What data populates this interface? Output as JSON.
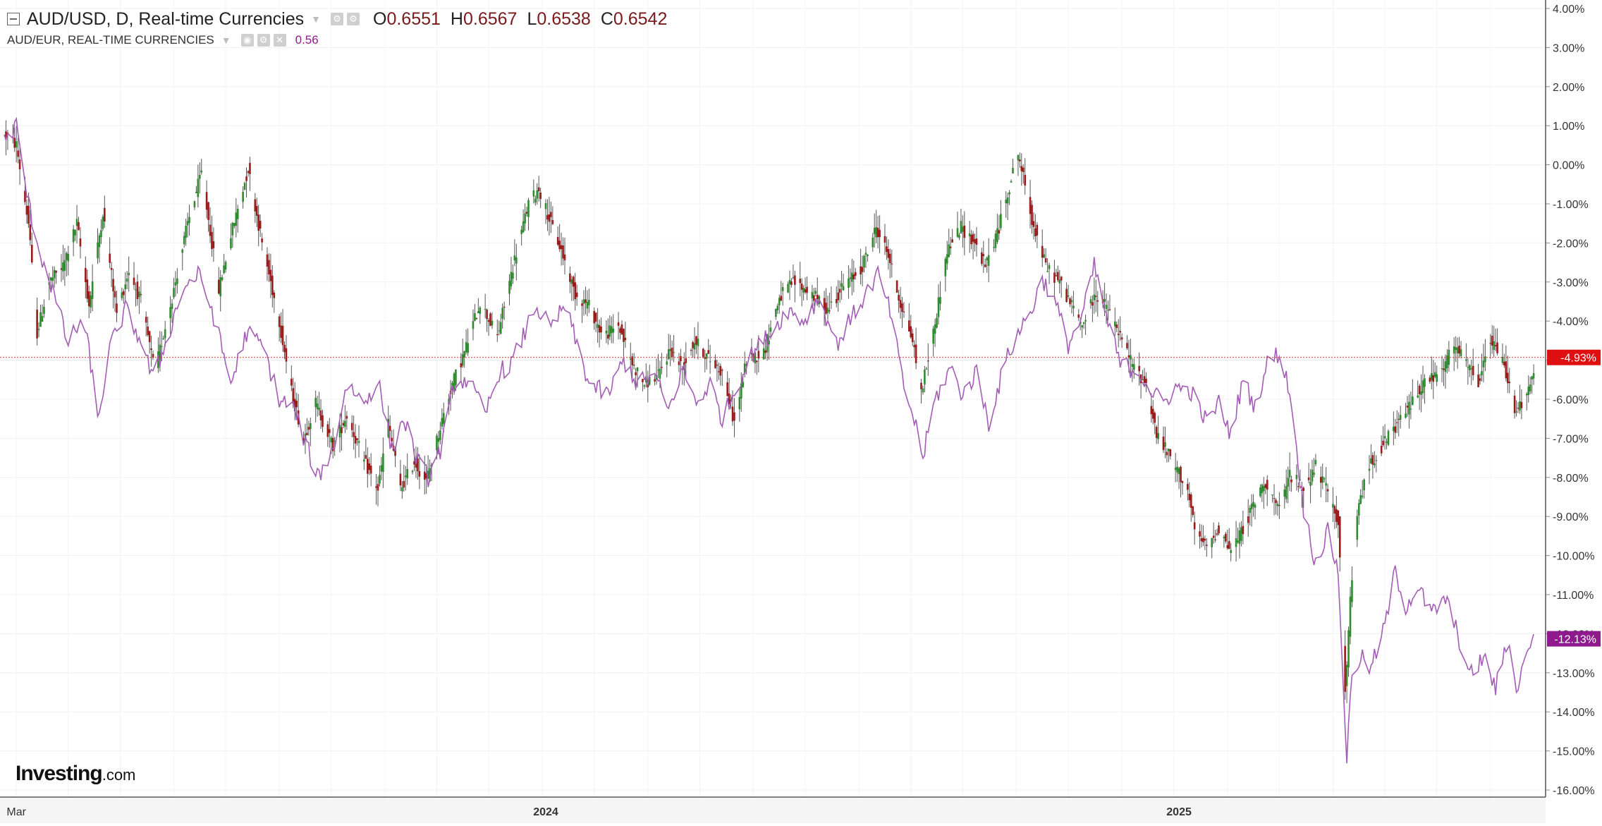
{
  "legend": {
    "main_title": "AUD/USD, D, Real-time Currencies",
    "ohlc": {
      "o_key": "O",
      "o_val": "0.6551",
      "h_key": "H",
      "h_val": "0.6567",
      "l_key": "L",
      "l_val": "0.6538",
      "c_key": "C",
      "c_val": "0.6542"
    },
    "compare_title": "AUD/EUR, REAL-TIME CURRENCIES",
    "compare_value": "0.56",
    "compare_color": "#8e1a8e"
  },
  "logo": {
    "text": "Investing",
    "suffix": ".com"
  },
  "chart_data": {
    "type": "line",
    "title": "AUD/USD, D, Real-time Currencies",
    "y_unit": "%",
    "ylim": [
      -16.4,
      4.2
    ],
    "y_ticks": [
      "4.00%",
      "3.00%",
      "2.00%",
      "1.00%",
      "0.00%",
      "-1.00%",
      "-2.00%",
      "-3.00%",
      "-4.00%",
      "-5.00%",
      "-6.00%",
      "-7.00%",
      "-8.00%",
      "-9.00%",
      "-10.00%",
      "-11.00%",
      "-12.00%",
      "-13.00%",
      "-14.00%",
      "-15.00%",
      "-16.00%"
    ],
    "x_range": [
      "2023-02-22",
      "2025-07-27"
    ],
    "x_ticks": [
      {
        "label": "Mar",
        "date": "2023-03-01"
      },
      {
        "label": "2024",
        "date": "2024-01-01"
      },
      {
        "label": "2025",
        "date": "2025-01-01"
      }
    ],
    "grid": true,
    "up_color": "#2e8b2e",
    "down_color": "#9b1b1b",
    "baseline_value": -4.93,
    "series": [
      {
        "name": "AUD/USD",
        "last_label": "-4.93%",
        "label_color": "#e01010",
        "points": [
          [
            "2023-02-22",
            0.8
          ],
          [
            "2023-03-01",
            0.5
          ],
          [
            "2023-03-08",
            -1.5
          ],
          [
            "2023-03-13",
            -4.3
          ],
          [
            "2023-03-20",
            -3.0
          ],
          [
            "2023-03-28",
            -2.6
          ],
          [
            "2023-04-05",
            -1.5
          ],
          [
            "2023-04-12",
            -3.6
          ],
          [
            "2023-04-20",
            -1.2
          ],
          [
            "2023-04-28",
            -3.8
          ],
          [
            "2023-05-05",
            -2.7
          ],
          [
            "2023-05-12",
            -3.5
          ],
          [
            "2023-05-20",
            -5.3
          ],
          [
            "2023-05-31",
            -3.2
          ],
          [
            "2023-06-08",
            -1.5
          ],
          [
            "2023-06-16",
            -0.2
          ],
          [
            "2023-06-26",
            -3.2
          ],
          [
            "2023-07-03",
            -1.8
          ],
          [
            "2023-07-13",
            -0.1
          ],
          [
            "2023-07-21",
            -2.0
          ],
          [
            "2023-07-31",
            -4.0
          ],
          [
            "2023-08-07",
            -5.8
          ],
          [
            "2023-08-14",
            -7.0
          ],
          [
            "2023-08-21",
            -6.1
          ],
          [
            "2023-08-31",
            -7.2
          ],
          [
            "2023-09-08",
            -6.4
          ],
          [
            "2023-09-18",
            -7.6
          ],
          [
            "2023-09-26",
            -8.3
          ],
          [
            "2023-10-02",
            -6.6
          ],
          [
            "2023-10-09",
            -8.3
          ],
          [
            "2023-10-17",
            -7.6
          ],
          [
            "2023-10-24",
            -8.1
          ],
          [
            "2023-11-01",
            -6.7
          ],
          [
            "2023-11-08",
            -5.6
          ],
          [
            "2023-11-15",
            -4.8
          ],
          [
            "2023-11-24",
            -3.5
          ],
          [
            "2023-12-04",
            -4.4
          ],
          [
            "2023-12-13",
            -2.6
          ],
          [
            "2023-12-22",
            -1.0
          ],
          [
            "2023-12-28",
            -0.6
          ],
          [
            "2024-01-04",
            -1.5
          ],
          [
            "2024-01-10",
            -2.2
          ],
          [
            "2024-01-18",
            -3.3
          ],
          [
            "2024-01-26",
            -3.6
          ],
          [
            "2024-02-03",
            -4.4
          ],
          [
            "2024-02-12",
            -4.1
          ],
          [
            "2024-02-20",
            -5.1
          ],
          [
            "2024-02-27",
            -5.6
          ],
          [
            "2024-03-06",
            -5.4
          ],
          [
            "2024-03-13",
            -4.7
          ],
          [
            "2024-03-20",
            -5.2
          ],
          [
            "2024-03-27",
            -4.5
          ],
          [
            "2024-04-05",
            -5.0
          ],
          [
            "2024-04-12",
            -5.3
          ],
          [
            "2024-04-19",
            -6.6
          ],
          [
            "2024-04-26",
            -5.0
          ],
          [
            "2024-05-06",
            -4.8
          ],
          [
            "2024-05-15",
            -3.4
          ],
          [
            "2024-05-23",
            -3.0
          ],
          [
            "2024-06-03",
            -3.3
          ],
          [
            "2024-06-12",
            -3.7
          ],
          [
            "2024-06-21",
            -3.1
          ],
          [
            "2024-07-01",
            -2.7
          ],
          [
            "2024-07-10",
            -1.6
          ],
          [
            "2024-07-17",
            -2.3
          ],
          [
            "2024-07-23",
            -3.4
          ],
          [
            "2024-07-31",
            -4.5
          ],
          [
            "2024-08-05",
            -5.8
          ],
          [
            "2024-08-12",
            -4.3
          ],
          [
            "2024-08-20",
            -2.2
          ],
          [
            "2024-08-28",
            -1.6
          ],
          [
            "2024-09-05",
            -2.0
          ],
          [
            "2024-09-11",
            -2.6
          ],
          [
            "2024-09-19",
            -1.6
          ],
          [
            "2024-09-24",
            -0.7
          ],
          [
            "2024-09-30",
            0.3
          ],
          [
            "2024-10-08",
            -1.4
          ],
          [
            "2024-10-16",
            -2.6
          ],
          [
            "2024-10-24",
            -3.0
          ],
          [
            "2024-10-31",
            -3.6
          ],
          [
            "2024-11-06",
            -4.1
          ],
          [
            "2024-11-14",
            -3.3
          ],
          [
            "2024-11-21",
            -3.7
          ],
          [
            "2024-11-28",
            -4.4
          ],
          [
            "2024-12-06",
            -5.2
          ],
          [
            "2024-12-13",
            -5.6
          ],
          [
            "2024-12-19",
            -6.9
          ],
          [
            "2024-12-27",
            -7.5
          ],
          [
            "2025-01-06",
            -8.3
          ],
          [
            "2025-01-10",
            -9.4
          ],
          [
            "2025-01-17",
            -9.8
          ],
          [
            "2025-01-24",
            -9.3
          ],
          [
            "2025-01-31",
            -9.9
          ],
          [
            "2025-02-06",
            -9.4
          ],
          [
            "2025-02-13",
            -8.7
          ],
          [
            "2025-02-20",
            -8.1
          ],
          [
            "2025-02-28",
            -8.9
          ],
          [
            "2025-03-06",
            -7.9
          ],
          [
            "2025-03-14",
            -8.3
          ],
          [
            "2025-03-21",
            -7.7
          ],
          [
            "2025-03-28",
            -8.4
          ],
          [
            "2025-04-03",
            -9.1
          ],
          [
            "2025-04-07",
            -13.5
          ],
          [
            "2025-04-10",
            -11.2
          ],
          [
            "2025-04-15",
            -8.6
          ],
          [
            "2025-04-22",
            -7.6
          ],
          [
            "2025-04-30",
            -7.1
          ],
          [
            "2025-05-08",
            -6.6
          ],
          [
            "2025-05-15",
            -6.1
          ],
          [
            "2025-05-22",
            -5.6
          ],
          [
            "2025-06-02",
            -5.3
          ],
          [
            "2025-06-09",
            -4.6
          ],
          [
            "2025-06-16",
            -5.1
          ],
          [
            "2025-06-23",
            -5.6
          ],
          [
            "2025-06-30",
            -4.5
          ],
          [
            "2025-07-07",
            -5.0
          ],
          [
            "2025-07-14",
            -6.2
          ],
          [
            "2025-07-21",
            -6.0
          ],
          [
            "2025-07-27",
            -4.93
          ]
        ]
      },
      {
        "name": "AUD/EUR",
        "last_label": "-12.13%",
        "label_color": "#8e1a8e",
        "line_color": "#a35db5",
        "points": [
          [
            "2023-02-22",
            0.6
          ],
          [
            "2023-03-01",
            1.0
          ],
          [
            "2023-03-08",
            -1.0
          ],
          [
            "2023-03-15",
            -2.3
          ],
          [
            "2023-03-22",
            -3.2
          ],
          [
            "2023-03-31",
            -4.6
          ],
          [
            "2023-04-07",
            -4.0
          ],
          [
            "2023-04-12",
            -4.7
          ],
          [
            "2023-04-17",
            -6.6
          ],
          [
            "2023-04-24",
            -4.7
          ],
          [
            "2023-05-03",
            -3.7
          ],
          [
            "2023-05-12",
            -4.5
          ],
          [
            "2023-05-19",
            -5.5
          ],
          [
            "2023-05-26",
            -4.6
          ],
          [
            "2023-06-05",
            -3.2
          ],
          [
            "2023-06-14",
            -2.8
          ],
          [
            "2023-06-22",
            -3.7
          ],
          [
            "2023-07-03",
            -5.6
          ],
          [
            "2023-07-12",
            -4.3
          ],
          [
            "2023-07-21",
            -4.6
          ],
          [
            "2023-07-31",
            -6.0
          ],
          [
            "2023-08-08",
            -6.2
          ],
          [
            "2023-08-15",
            -7.1
          ],
          [
            "2023-08-22",
            -8.0
          ],
          [
            "2023-08-31",
            -7.3
          ],
          [
            "2023-09-08",
            -5.6
          ],
          [
            "2023-09-18",
            -6.1
          ],
          [
            "2023-09-26",
            -5.5
          ],
          [
            "2023-10-04",
            -7.3
          ],
          [
            "2023-10-11",
            -6.5
          ],
          [
            "2023-10-19",
            -7.6
          ],
          [
            "2023-10-25",
            -8.0
          ],
          [
            "2023-11-02",
            -7.2
          ],
          [
            "2023-11-09",
            -5.6
          ],
          [
            "2023-11-17",
            -5.5
          ],
          [
            "2023-11-27",
            -6.4
          ],
          [
            "2023-12-05",
            -5.3
          ],
          [
            "2023-12-12",
            -5.1
          ],
          [
            "2023-12-19",
            -4.4
          ],
          [
            "2023-12-26",
            -3.6
          ],
          [
            "2024-01-04",
            -4.2
          ],
          [
            "2024-01-12",
            -3.6
          ],
          [
            "2024-01-19",
            -4.6
          ],
          [
            "2024-01-26",
            -5.6
          ],
          [
            "2024-02-06",
            -5.9
          ],
          [
            "2024-02-15",
            -5.0
          ],
          [
            "2024-02-23",
            -5.6
          ],
          [
            "2024-03-04",
            -5.4
          ],
          [
            "2024-03-12",
            -6.3
          ],
          [
            "2024-03-20",
            -5.2
          ],
          [
            "2024-03-28",
            -6.1
          ],
          [
            "2024-04-05",
            -5.6
          ],
          [
            "2024-04-12",
            -6.5
          ],
          [
            "2024-04-22",
            -5.5
          ],
          [
            "2024-04-30",
            -4.8
          ],
          [
            "2024-05-10",
            -4.3
          ],
          [
            "2024-05-20",
            -3.7
          ],
          [
            "2024-05-29",
            -4.0
          ],
          [
            "2024-06-07",
            -3.4
          ],
          [
            "2024-06-17",
            -4.6
          ],
          [
            "2024-06-26",
            -3.9
          ],
          [
            "2024-07-04",
            -3.3
          ],
          [
            "2024-07-11",
            -2.8
          ],
          [
            "2024-07-19",
            -3.9
          ],
          [
            "2024-07-25",
            -5.5
          ],
          [
            "2024-08-02",
            -6.7
          ],
          [
            "2024-08-06",
            -7.5
          ],
          [
            "2024-08-13",
            -6.0
          ],
          [
            "2024-08-22",
            -5.2
          ],
          [
            "2024-08-29",
            -5.9
          ],
          [
            "2024-09-06",
            -5.3
          ],
          [
            "2024-09-13",
            -6.6
          ],
          [
            "2024-09-23",
            -5.0
          ],
          [
            "2024-09-30",
            -4.3
          ],
          [
            "2024-10-08",
            -3.7
          ],
          [
            "2024-10-14",
            -2.9
          ],
          [
            "2024-10-22",
            -3.6
          ],
          [
            "2024-10-29",
            -4.6
          ],
          [
            "2024-11-06",
            -3.9
          ],
          [
            "2024-11-13",
            -2.6
          ],
          [
            "2024-11-20",
            -3.9
          ],
          [
            "2024-11-28",
            -5.1
          ],
          [
            "2024-12-09",
            -5.3
          ],
          [
            "2024-12-16",
            -5.8
          ],
          [
            "2024-12-23",
            -6.1
          ],
          [
            "2024-12-30",
            -5.7
          ],
          [
            "2025-01-08",
            -5.8
          ],
          [
            "2025-01-17",
            -6.6
          ],
          [
            "2025-01-24",
            -6.1
          ],
          [
            "2025-01-31",
            -6.9
          ],
          [
            "2025-02-07",
            -5.5
          ],
          [
            "2025-02-14",
            -6.2
          ],
          [
            "2025-02-21",
            -5.1
          ],
          [
            "2025-02-28",
            -4.8
          ],
          [
            "2025-03-06",
            -5.8
          ],
          [
            "2025-03-14",
            -8.8
          ],
          [
            "2025-03-21",
            -10.2
          ],
          [
            "2025-03-28",
            -9.4
          ],
          [
            "2025-04-03",
            -10.4
          ],
          [
            "2025-04-08",
            -15.2
          ],
          [
            "2025-04-11",
            -13.0
          ],
          [
            "2025-04-16",
            -12.6
          ],
          [
            "2025-04-22",
            -12.9
          ],
          [
            "2025-04-30",
            -11.8
          ],
          [
            "2025-05-06",
            -10.4
          ],
          [
            "2025-05-12",
            -11.3
          ],
          [
            "2025-05-19",
            -10.8
          ],
          [
            "2025-05-27",
            -11.5
          ],
          [
            "2025-06-04",
            -11.1
          ],
          [
            "2025-06-11",
            -12.0
          ],
          [
            "2025-06-18",
            -13.1
          ],
          [
            "2025-06-26",
            -12.6
          ],
          [
            "2025-07-03",
            -13.4
          ],
          [
            "2025-07-10",
            -12.2
          ],
          [
            "2025-07-16",
            -13.5
          ],
          [
            "2025-07-21",
            -12.3
          ],
          [
            "2025-07-27",
            -12.13
          ]
        ]
      }
    ]
  }
}
